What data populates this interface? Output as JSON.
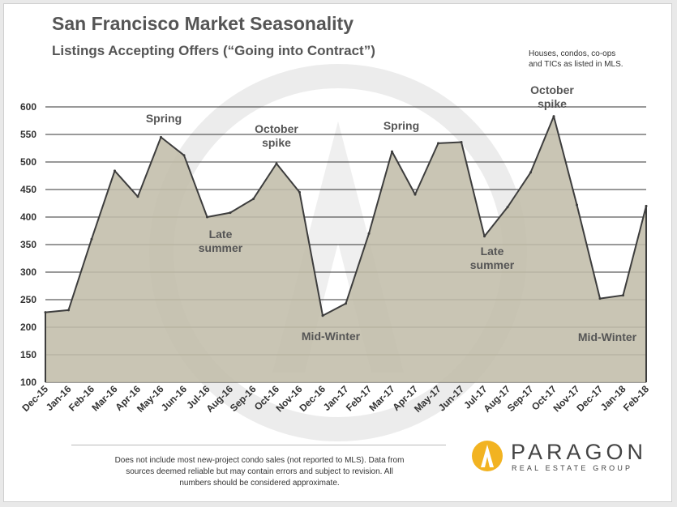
{
  "title": "San Francisco Market Seasonality",
  "subtitle": "Listings Accepting Offers (“Going into Contract”)",
  "note_lines": [
    "Houses, condos, co-ops",
    "and TICs as listed in MLS."
  ],
  "disclaimer_lines": [
    "Does not include most new-project condo sales (not reported to MLS). Data from",
    "sources deemed reliable but may contain errors and subject to revision.  All",
    "numbers should be considered approximate."
  ],
  "brand": {
    "name": "PARAGON",
    "tagline": "REAL ESTATE GROUP"
  },
  "colors": {
    "area_fill": "#c2bdaa",
    "line": "#3d3d3d",
    "grid": "#333333",
    "axis_text": "#333333",
    "annotation_text": "#555555",
    "watermark": "#dcdcdc",
    "logo_gold": "#f2b321"
  },
  "chart_data": {
    "type": "area",
    "title": "San Francisco Market Seasonality",
    "subtitle": "Listings Accepting Offers (“Going into Contract”)",
    "xlabel": "",
    "ylabel": "",
    "ylim": [
      100,
      600
    ],
    "yticks": [
      100,
      150,
      200,
      250,
      300,
      350,
      400,
      450,
      500,
      550,
      600
    ],
    "grid": true,
    "categories": [
      "Dec-15",
      "Jan-16",
      "Feb-16",
      "Mar-16",
      "Apr-16",
      "May-16",
      "Jun-16",
      "Jul-16",
      "Aug-16",
      "Sep-16",
      "Oct-16",
      "Nov-16",
      "Dec-16",
      "Jan-17",
      "Feb-17",
      "Mar-17",
      "Apr-17",
      "May-17",
      "Jun-17",
      "Jul-17",
      "Aug-17",
      "Sep-17",
      "Oct-17",
      "Nov-17",
      "Dec-17",
      "Jan-18",
      "Feb-18"
    ],
    "series": [
      {
        "name": "Listings Accepting Offers",
        "values": [
          227,
          231,
          360,
          484,
          437,
          545,
          512,
          400,
          408,
          433,
          497,
          445,
          221,
          243,
          370,
          519,
          441,
          534,
          536,
          365,
          418,
          481,
          583,
          422,
          252,
          258,
          420
        ]
      }
    ],
    "annotations": [
      {
        "lines": [
          "Spring"
        ],
        "category": "May-16"
      },
      {
        "lines": [
          "October",
          "spike"
        ],
        "category": "Oct-16"
      },
      {
        "lines": [
          "Late",
          "summer"
        ],
        "category": "Jul-16"
      },
      {
        "lines": [
          "Mid-Winter"
        ],
        "category": "Dec-16"
      },
      {
        "lines": [
          "Spring"
        ],
        "category": "Mar-17"
      },
      {
        "lines": [
          "October",
          "spike"
        ],
        "category": "Oct-17"
      },
      {
        "lines": [
          "Late",
          "summer"
        ],
        "category": "Jul-17"
      },
      {
        "lines": [
          "Mid-Winter"
        ],
        "category": "Jan-18"
      }
    ]
  }
}
